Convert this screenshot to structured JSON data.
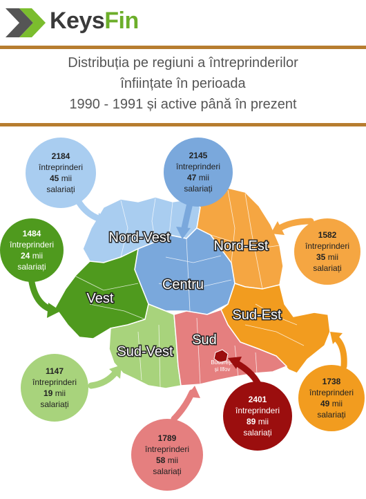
{
  "header": {
    "logo_part1": "Keys",
    "logo_part2": "Fin",
    "title_lines": [
      "Distribuția pe regiuni a întreprinderilor",
      "înființate în perioada",
      "1990 - 1991 și active până în prezent"
    ]
  },
  "colors": {
    "rule": "#b77d2f",
    "nord_vest": "#a9cdf0",
    "centru": "#7aa8dc",
    "nord_est": "#f5a642",
    "sud_est": "#f29c1f",
    "sud": "#e57f7f",
    "sud_vest": "#a8d37c",
    "vest": "#4f9a1e",
    "bucuresti": "#9b0e0e"
  },
  "regions": {
    "nord_vest": "Nord-Vest",
    "centru": "Centru",
    "nord_est": "Nord-Est",
    "vest": "Vest",
    "sud_est": "Sud-Est",
    "sud_vest": "Sud-Vest",
    "sud": "Sud",
    "bucuresti_line1": "București",
    "bucuresti_line2": "și Ilfov"
  },
  "stats": {
    "nord_vest": {
      "count": "2184",
      "unit": "întreprinderi",
      "employees": "45",
      "emp_unit": "mii",
      "emp_label": "salariați"
    },
    "centru": {
      "count": "2145",
      "unit": "întreprinderi",
      "employees": "47",
      "emp_unit": "mii",
      "emp_label": "salariați"
    },
    "vest": {
      "count": "1484",
      "unit": "întreprinderi",
      "employees": "24",
      "emp_unit": "mii",
      "emp_label": "salariați"
    },
    "nord_est": {
      "count": "1582",
      "unit": "întreprinderi",
      "employees": "35",
      "emp_unit": "mii",
      "emp_label": "salariați"
    },
    "sud_vest": {
      "count": "1147",
      "unit": "întreprinderi",
      "employees": "19",
      "emp_unit": "mii",
      "emp_label": "salariați"
    },
    "sud_est": {
      "count": "1738",
      "unit": "întreprinderi",
      "employees": "49",
      "emp_unit": "mii",
      "emp_label": "salariați"
    },
    "bucuresti": {
      "count": "2401",
      "unit": "întreprinderi",
      "employees": "89",
      "emp_unit": "mii",
      "emp_label": "salariați"
    },
    "sud": {
      "count": "1789",
      "unit": "întreprinderi",
      "employees": "58",
      "emp_unit": "mii",
      "emp_label": "salariați"
    }
  }
}
